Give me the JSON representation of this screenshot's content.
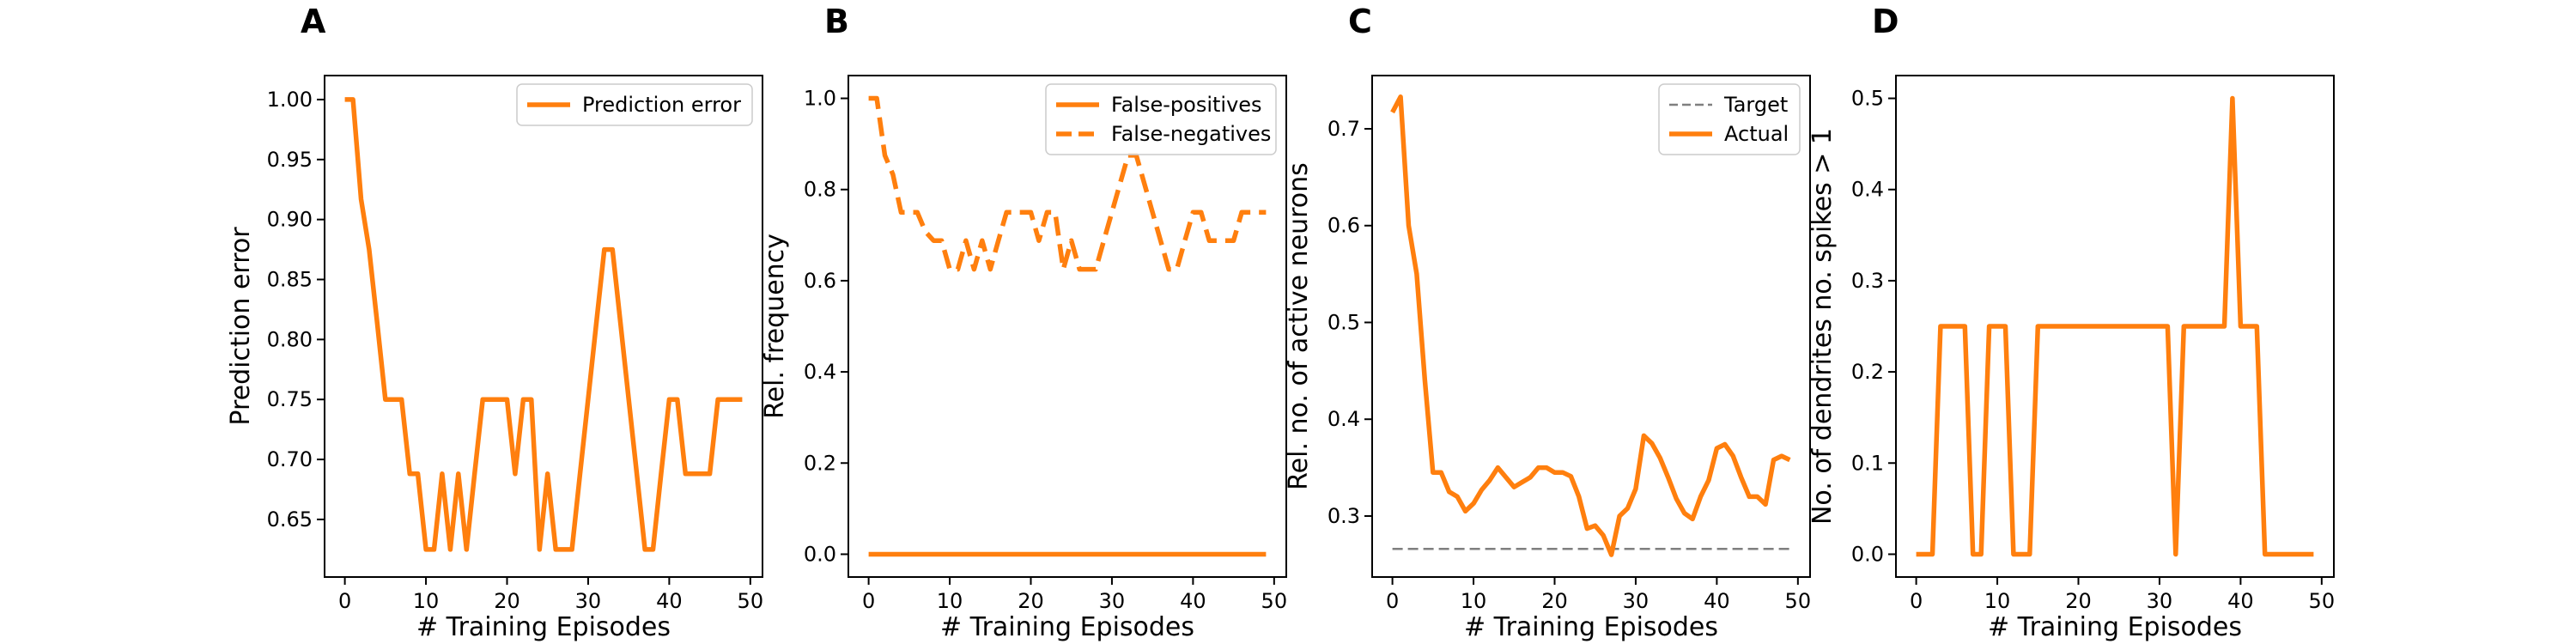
{
  "colors": {
    "orange": "#ff7f0e",
    "gray": "#7f7f7f"
  },
  "chart_data": [
    {
      "type": "line",
      "panel": "A",
      "xlabel": "# Training Episodes",
      "ylabel": "Prediction error",
      "xlim": [
        -2.5,
        51.5
      ],
      "ylim": [
        0.602,
        1.02
      ],
      "xticks": [
        0,
        10,
        20,
        30,
        40,
        50
      ],
      "yticks": [
        0.65,
        0.7,
        0.75,
        0.8,
        0.85,
        0.9,
        0.95,
        1.0
      ],
      "ytick_labels": [
        "0.65",
        "0.70",
        "0.75",
        "0.80",
        "0.85",
        "0.90",
        "0.95",
        "1.00"
      ],
      "legend": "top-right",
      "series": [
        {
          "name": "Prediction error",
          "style": "solid",
          "x": [
            0,
            1,
            2,
            3,
            4,
            5,
            6,
            7,
            8,
            9,
            10,
            11,
            12,
            13,
            14,
            15,
            16,
            17,
            18,
            19,
            20,
            21,
            22,
            23,
            24,
            25,
            26,
            27,
            28,
            29,
            30,
            31,
            32,
            33,
            34,
            35,
            36,
            37,
            38,
            39,
            40,
            41,
            42,
            43,
            44,
            45,
            46,
            47,
            48,
            49
          ],
          "values": [
            1.0,
            1.0,
            0.917,
            0.875,
            0.813,
            0.75,
            0.75,
            0.75,
            0.688,
            0.688,
            0.625,
            0.625,
            0.688,
            0.625,
            0.688,
            0.625,
            0.688,
            0.75,
            0.75,
            0.75,
            0.75,
            0.688,
            0.75,
            0.75,
            0.625,
            0.688,
            0.625,
            0.625,
            0.625,
            0.688,
            0.75,
            0.813,
            0.875,
            0.875,
            0.813,
            0.75,
            0.688,
            0.625,
            0.625,
            0.688,
            0.75,
            0.75,
            0.688,
            0.688,
            0.688,
            0.688,
            0.75,
            0.75,
            0.75,
            0.75
          ]
        }
      ]
    },
    {
      "type": "line",
      "panel": "B",
      "xlabel": "# Training Episodes",
      "ylabel": "Rel. frequency",
      "xlim": [
        -2.5,
        51.5
      ],
      "ylim": [
        -0.05,
        1.05
      ],
      "xticks": [
        0,
        10,
        20,
        30,
        40,
        50
      ],
      "yticks": [
        0.0,
        0.2,
        0.4,
        0.6,
        0.8,
        1.0
      ],
      "ytick_labels": [
        "0.0",
        "0.2",
        "0.4",
        "0.6",
        "0.8",
        "1.0"
      ],
      "legend": "top-right",
      "series": [
        {
          "name": "False-positives",
          "style": "solid",
          "x": [
            0,
            1,
            2,
            3,
            4,
            5,
            6,
            7,
            8,
            9,
            10,
            11,
            12,
            13,
            14,
            15,
            16,
            17,
            18,
            19,
            20,
            21,
            22,
            23,
            24,
            25,
            26,
            27,
            28,
            29,
            30,
            31,
            32,
            33,
            34,
            35,
            36,
            37,
            38,
            39,
            40,
            41,
            42,
            43,
            44,
            45,
            46,
            47,
            48,
            49
          ],
          "values": [
            0,
            0,
            0,
            0,
            0,
            0,
            0,
            0,
            0,
            0,
            0,
            0,
            0,
            0,
            0,
            0,
            0,
            0,
            0,
            0,
            0,
            0,
            0,
            0,
            0,
            0,
            0,
            0,
            0,
            0,
            0,
            0,
            0,
            0,
            0,
            0,
            0,
            0,
            0,
            0,
            0,
            0,
            0,
            0,
            0,
            0,
            0,
            0,
            0,
            0
          ]
        },
        {
          "name": "False-negatives",
          "style": "dashed",
          "x": [
            0,
            1,
            2,
            3,
            4,
            5,
            6,
            7,
            8,
            9,
            10,
            11,
            12,
            13,
            14,
            15,
            16,
            17,
            18,
            19,
            20,
            21,
            22,
            23,
            24,
            25,
            26,
            27,
            28,
            29,
            30,
            31,
            32,
            33,
            34,
            35,
            36,
            37,
            38,
            39,
            40,
            41,
            42,
            43,
            44,
            45,
            46,
            47,
            48,
            49
          ],
          "values": [
            1.0,
            1.0,
            0.875,
            0.833,
            0.75,
            0.75,
            0.75,
            0.708,
            0.688,
            0.688,
            0.625,
            0.625,
            0.688,
            0.625,
            0.688,
            0.625,
            0.688,
            0.75,
            0.75,
            0.75,
            0.75,
            0.688,
            0.75,
            0.75,
            0.625,
            0.688,
            0.625,
            0.625,
            0.625,
            0.688,
            0.75,
            0.813,
            0.875,
            0.875,
            0.813,
            0.75,
            0.688,
            0.625,
            0.625,
            0.688,
            0.75,
            0.75,
            0.688,
            0.688,
            0.688,
            0.688,
            0.75,
            0.75,
            0.75,
            0.75
          ]
        }
      ]
    },
    {
      "type": "line",
      "panel": "C",
      "xlabel": "# Training Episodes",
      "ylabel": "Rel. no. of active neurons",
      "xlim": [
        -2.5,
        51.5
      ],
      "ylim": [
        0.237,
        0.755
      ],
      "xticks": [
        0,
        10,
        20,
        30,
        40,
        50
      ],
      "yticks": [
        0.3,
        0.4,
        0.5,
        0.6,
        0.7
      ],
      "ytick_labels": [
        "0.3",
        "0.4",
        "0.5",
        "0.6",
        "0.7"
      ],
      "legend": "top-right",
      "series": [
        {
          "name": "Target",
          "style": "dashed-thin",
          "x": [
            0,
            49
          ],
          "values": [
            0.266,
            0.266
          ]
        },
        {
          "name": "Actual",
          "style": "solid",
          "x": [
            0,
            1,
            2,
            3,
            4,
            5,
            6,
            7,
            8,
            9,
            10,
            11,
            12,
            13,
            14,
            15,
            16,
            17,
            18,
            19,
            20,
            21,
            22,
            23,
            24,
            25,
            26,
            27,
            28,
            29,
            30,
            31,
            32,
            33,
            34,
            35,
            36,
            37,
            38,
            39,
            40,
            41,
            42,
            43,
            44,
            45,
            46,
            47,
            48,
            49
          ],
          "values": [
            0.717,
            0.733,
            0.6,
            0.55,
            0.44,
            0.345,
            0.345,
            0.325,
            0.32,
            0.305,
            0.313,
            0.327,
            0.337,
            0.35,
            0.34,
            0.33,
            0.335,
            0.34,
            0.35,
            0.35,
            0.345,
            0.345,
            0.341,
            0.32,
            0.287,
            0.29,
            0.28,
            0.26,
            0.3,
            0.308,
            0.328,
            0.383,
            0.375,
            0.36,
            0.34,
            0.318,
            0.303,
            0.297,
            0.32,
            0.337,
            0.37,
            0.374,
            0.362,
            0.34,
            0.32,
            0.32,
            0.312,
            0.358,
            0.362,
            0.358
          ]
        }
      ]
    },
    {
      "type": "line",
      "panel": "D",
      "xlabel": "# Training Episodes",
      "ylabel": "No. of dendrites no. spikes > 1",
      "xlim": [
        -2.5,
        51.5
      ],
      "ylim": [
        -0.025,
        0.525
      ],
      "xticks": [
        0,
        10,
        20,
        30,
        40,
        50
      ],
      "yticks": [
        0.0,
        0.1,
        0.2,
        0.3,
        0.4,
        0.5
      ],
      "ytick_labels": [
        "0.0",
        "0.1",
        "0.2",
        "0.3",
        "0.4",
        "0.5"
      ],
      "legend": "none",
      "series": [
        {
          "name": "",
          "style": "solid",
          "x": [
            0,
            1,
            2,
            3,
            4,
            5,
            6,
            7,
            8,
            9,
            10,
            11,
            12,
            13,
            14,
            15,
            16,
            17,
            18,
            19,
            20,
            21,
            22,
            23,
            24,
            25,
            26,
            27,
            28,
            29,
            30,
            31,
            32,
            33,
            34,
            35,
            36,
            37,
            38,
            39,
            40,
            41,
            42,
            43,
            44,
            45,
            46,
            47,
            48,
            49
          ],
          "values": [
            0,
            0,
            0,
            0.25,
            0.25,
            0.25,
            0.25,
            0,
            0,
            0.25,
            0.25,
            0.25,
            0,
            0,
            0,
            0.25,
            0.25,
            0.25,
            0.25,
            0.25,
            0.25,
            0.25,
            0.25,
            0.25,
            0.25,
            0.25,
            0.25,
            0.25,
            0.25,
            0.25,
            0.25,
            0.25,
            0,
            0.25,
            0.25,
            0.25,
            0.25,
            0.25,
            0.25,
            0.5,
            0.25,
            0.25,
            0.25,
            0,
            0,
            0,
            0,
            0,
            0,
            0
          ]
        }
      ]
    }
  ]
}
